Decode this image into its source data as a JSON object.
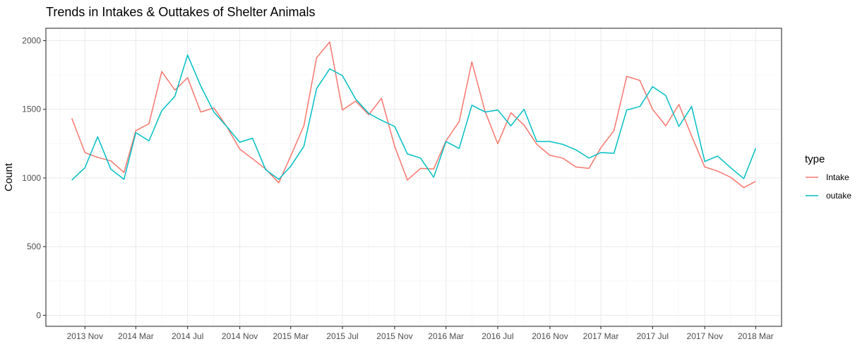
{
  "chart_data": {
    "type": "line",
    "title": "Trends in Intakes & Outtakes of Shelter Animals",
    "xlabel": "",
    "ylabel": "Count",
    "ylim": [
      -80,
      2090
    ],
    "yticks": [
      0,
      500,
      1000,
      1500,
      2000
    ],
    "xlim": [
      "2013-08-01",
      "2018-05-01"
    ],
    "xticks": [
      "2013-11-01",
      "2014-03-01",
      "2014-07-01",
      "2014-11-01",
      "2015-03-01",
      "2015-07-01",
      "2015-11-01",
      "2016-03-01",
      "2016-07-01",
      "2016-11-01",
      "2017-03-01",
      "2017-07-01",
      "2017-11-01",
      "2018-03-01"
    ],
    "xtick_labels": [
      "2013 Nov",
      "2014 Mar",
      "2014 Jul",
      "2014 Nov",
      "2015 Mar",
      "2015 Jul",
      "2015 Nov",
      "2016 Mar",
      "2016 Jul",
      "2016 Nov",
      "2017 Mar",
      "2017 Jul",
      "2017 Nov",
      "2018 Mar"
    ],
    "grid": true,
    "legend_position": "right",
    "legend_title": "type",
    "x": [
      "2013-10-01",
      "2013-11-01",
      "2013-12-01",
      "2014-01-01",
      "2014-02-01",
      "2014-03-01",
      "2014-04-01",
      "2014-05-01",
      "2014-06-01",
      "2014-07-01",
      "2014-08-01",
      "2014-09-01",
      "2014-10-01",
      "2014-11-01",
      "2014-12-01",
      "2015-01-01",
      "2015-02-01",
      "2015-03-01",
      "2015-04-01",
      "2015-05-01",
      "2015-06-01",
      "2015-07-01",
      "2015-08-01",
      "2015-09-01",
      "2015-10-01",
      "2015-11-01",
      "2015-12-01",
      "2016-01-01",
      "2016-02-01",
      "2016-03-01",
      "2016-04-01",
      "2016-05-01",
      "2016-06-01",
      "2016-07-01",
      "2016-08-01",
      "2016-09-01",
      "2016-10-01",
      "2016-11-01",
      "2016-12-01",
      "2017-01-01",
      "2017-02-01",
      "2017-03-01",
      "2017-04-01",
      "2017-05-01",
      "2017-06-01",
      "2017-07-01",
      "2017-08-01",
      "2017-09-01",
      "2017-10-01",
      "2017-11-01",
      "2017-12-01",
      "2018-01-01",
      "2018-02-01",
      "2018-03-01"
    ],
    "series": [
      {
        "name": "Intake",
        "color": "#F8766D",
        "values": [
          1435,
          1185,
          1150,
          1125,
          1040,
          1345,
          1395,
          1775,
          1640,
          1730,
          1480,
          1510,
          1375,
          1210,
          1140,
          1065,
          965,
          1160,
          1380,
          1875,
          1990,
          1495,
          1560,
          1460,
          1580,
          1230,
          985,
          1070,
          1065,
          1270,
          1410,
          1845,
          1485,
          1250,
          1475,
          1385,
          1245,
          1165,
          1145,
          1080,
          1070,
          1220,
          1345,
          1740,
          1710,
          1500,
          1380,
          1535,
          1305,
          1080,
          1050,
          1005,
          930,
          975
        ]
      },
      {
        "name": "outake",
        "color": "#00BFC4",
        "values": [
          985,
          1075,
          1300,
          1065,
          990,
          1330,
          1270,
          1490,
          1595,
          1895,
          1670,
          1480,
          1375,
          1260,
          1290,
          1060,
          990,
          1085,
          1230,
          1650,
          1795,
          1745,
          1575,
          1470,
          1420,
          1375,
          1175,
          1145,
          1005,
          1265,
          1215,
          1530,
          1480,
          1495,
          1380,
          1500,
          1265,
          1265,
          1245,
          1205,
          1145,
          1185,
          1180,
          1495,
          1520,
          1665,
          1600,
          1375,
          1520,
          1120,
          1160,
          1075,
          995,
          1215
        ]
      }
    ]
  }
}
